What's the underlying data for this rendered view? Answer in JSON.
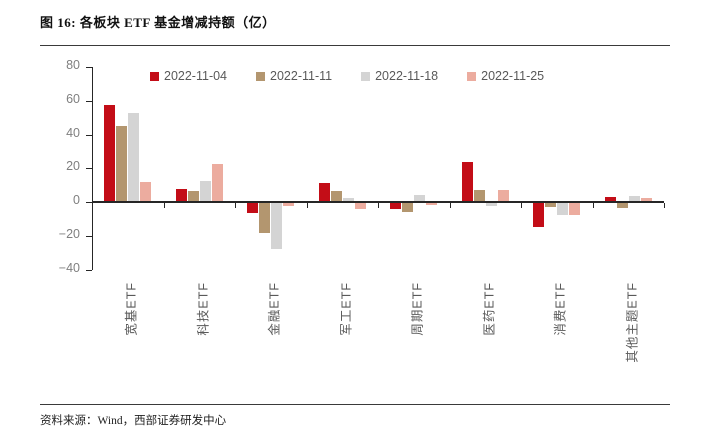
{
  "header": {
    "title": "图 16: 各板块 ETF 基金增减持额（亿）"
  },
  "footer": {
    "source": "资料来源：Wind，西部证券研发中心"
  },
  "colors": {
    "series_red": "#C30D17",
    "series_tan": "#B3966F",
    "series_gray": "#D4D4D4",
    "series_pink": "#ECAC9F",
    "axis": "#262626",
    "tick_label": "#7f7f7f",
    "legend_text": "#595959"
  },
  "chart_data": {
    "type": "bar",
    "title": "各板块 ETF 基金增减持额（亿）",
    "xlabel": "",
    "ylabel": "",
    "ylim": [
      -40,
      80
    ],
    "yticks": [
      80,
      60,
      40,
      20,
      0,
      -20,
      -40
    ],
    "grid": false,
    "legend_position": "top",
    "categories": [
      "宽基ETF",
      "科技ETF",
      "金融ETF",
      "军工ETF",
      "周期ETF",
      "医药ETF",
      "消费ETF",
      "其他主题ETF"
    ],
    "series": [
      {
        "name": "2022-11-04",
        "color": "#C30D17",
        "values": [
          57,
          7,
          -6,
          10.5,
          -3.5,
          23,
          -14,
          2.5
        ]
      },
      {
        "name": "2022-11-11",
        "color": "#B3966F",
        "values": [
          44.5,
          6,
          -17.5,
          6,
          -5.5,
          6.5,
          -2.5,
          -3
        ]
      },
      {
        "name": "2022-11-18",
        "color": "#D4D4D4",
        "values": [
          52,
          12,
          -27.5,
          1.5,
          3.5,
          -1.5,
          -7,
          3
        ]
      },
      {
        "name": "2022-11-25",
        "color": "#ECAC9F",
        "values": [
          11,
          22,
          -1.5,
          -3.5,
          -1,
          6.5,
          -7,
          2
        ]
      }
    ]
  }
}
